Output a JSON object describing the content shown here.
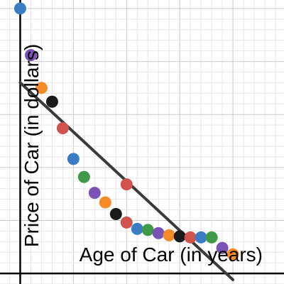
{
  "chart_data": {
    "type": "scatter",
    "title": "",
    "xlabel": "Age of Car (in years)",
    "ylabel": "Price of Car (in dollars)",
    "xlim": [
      -1.9,
      24.8
    ],
    "ylim": [
      -1,
      25.8
    ],
    "grid": true,
    "legend": "none",
    "points": [
      {
        "x": 0.0,
        "y": 25.0,
        "color": "#3b7dc4"
      },
      {
        "x": 1.0,
        "y": 20.6,
        "color": "#7b52b5"
      },
      {
        "x": 2.0,
        "y": 17.5,
        "color": "#f58a27"
      },
      {
        "x": 3.0,
        "y": 16.2,
        "color": "#1a1a1a"
      },
      {
        "x": 4.0,
        "y": 13.7,
        "color": "#d1534d"
      },
      {
        "x": 5.0,
        "y": 10.8,
        "color": "#3b7dc4"
      },
      {
        "x": 6.0,
        "y": 9.1,
        "color": "#3e9a48"
      },
      {
        "x": 7.0,
        "y": 7.6,
        "color": "#7b52b5"
      },
      {
        "x": 8.0,
        "y": 6.7,
        "color": "#f58a27"
      },
      {
        "x": 9.0,
        "y": 5.6,
        "color": "#1a1a1a"
      },
      {
        "x": 10.0,
        "y": 8.4,
        "color": "#d1534d"
      },
      {
        "x": 10.0,
        "y": 4.8,
        "color": "#d1534d"
      },
      {
        "x": 11.0,
        "y": 4.2,
        "color": "#3b7dc4"
      },
      {
        "x": 12.0,
        "y": 4.1,
        "color": "#3e9a48"
      },
      {
        "x": 13.0,
        "y": 3.8,
        "color": "#7b52b5"
      },
      {
        "x": 14.0,
        "y": 3.6,
        "color": "#f58a27"
      },
      {
        "x": 15.0,
        "y": 3.5,
        "color": "#1a1a1a"
      },
      {
        "x": 16.0,
        "y": 3.4,
        "color": "#d1534d"
      },
      {
        "x": 17.0,
        "y": 3.4,
        "color": "#3b7dc4"
      },
      {
        "x": 18.0,
        "y": 3.4,
        "color": "#3e9a48"
      },
      {
        "x": 19.0,
        "y": 2.4,
        "color": "#7b52b5"
      },
      {
        "x": 20.0,
        "y": 1.8,
        "color": "#f58a27"
      }
    ],
    "trendline": {
      "x": [
        0,
        20
      ],
      "y": [
        18.0,
        -0.6
      ],
      "color": "#3a3a3a"
    }
  }
}
